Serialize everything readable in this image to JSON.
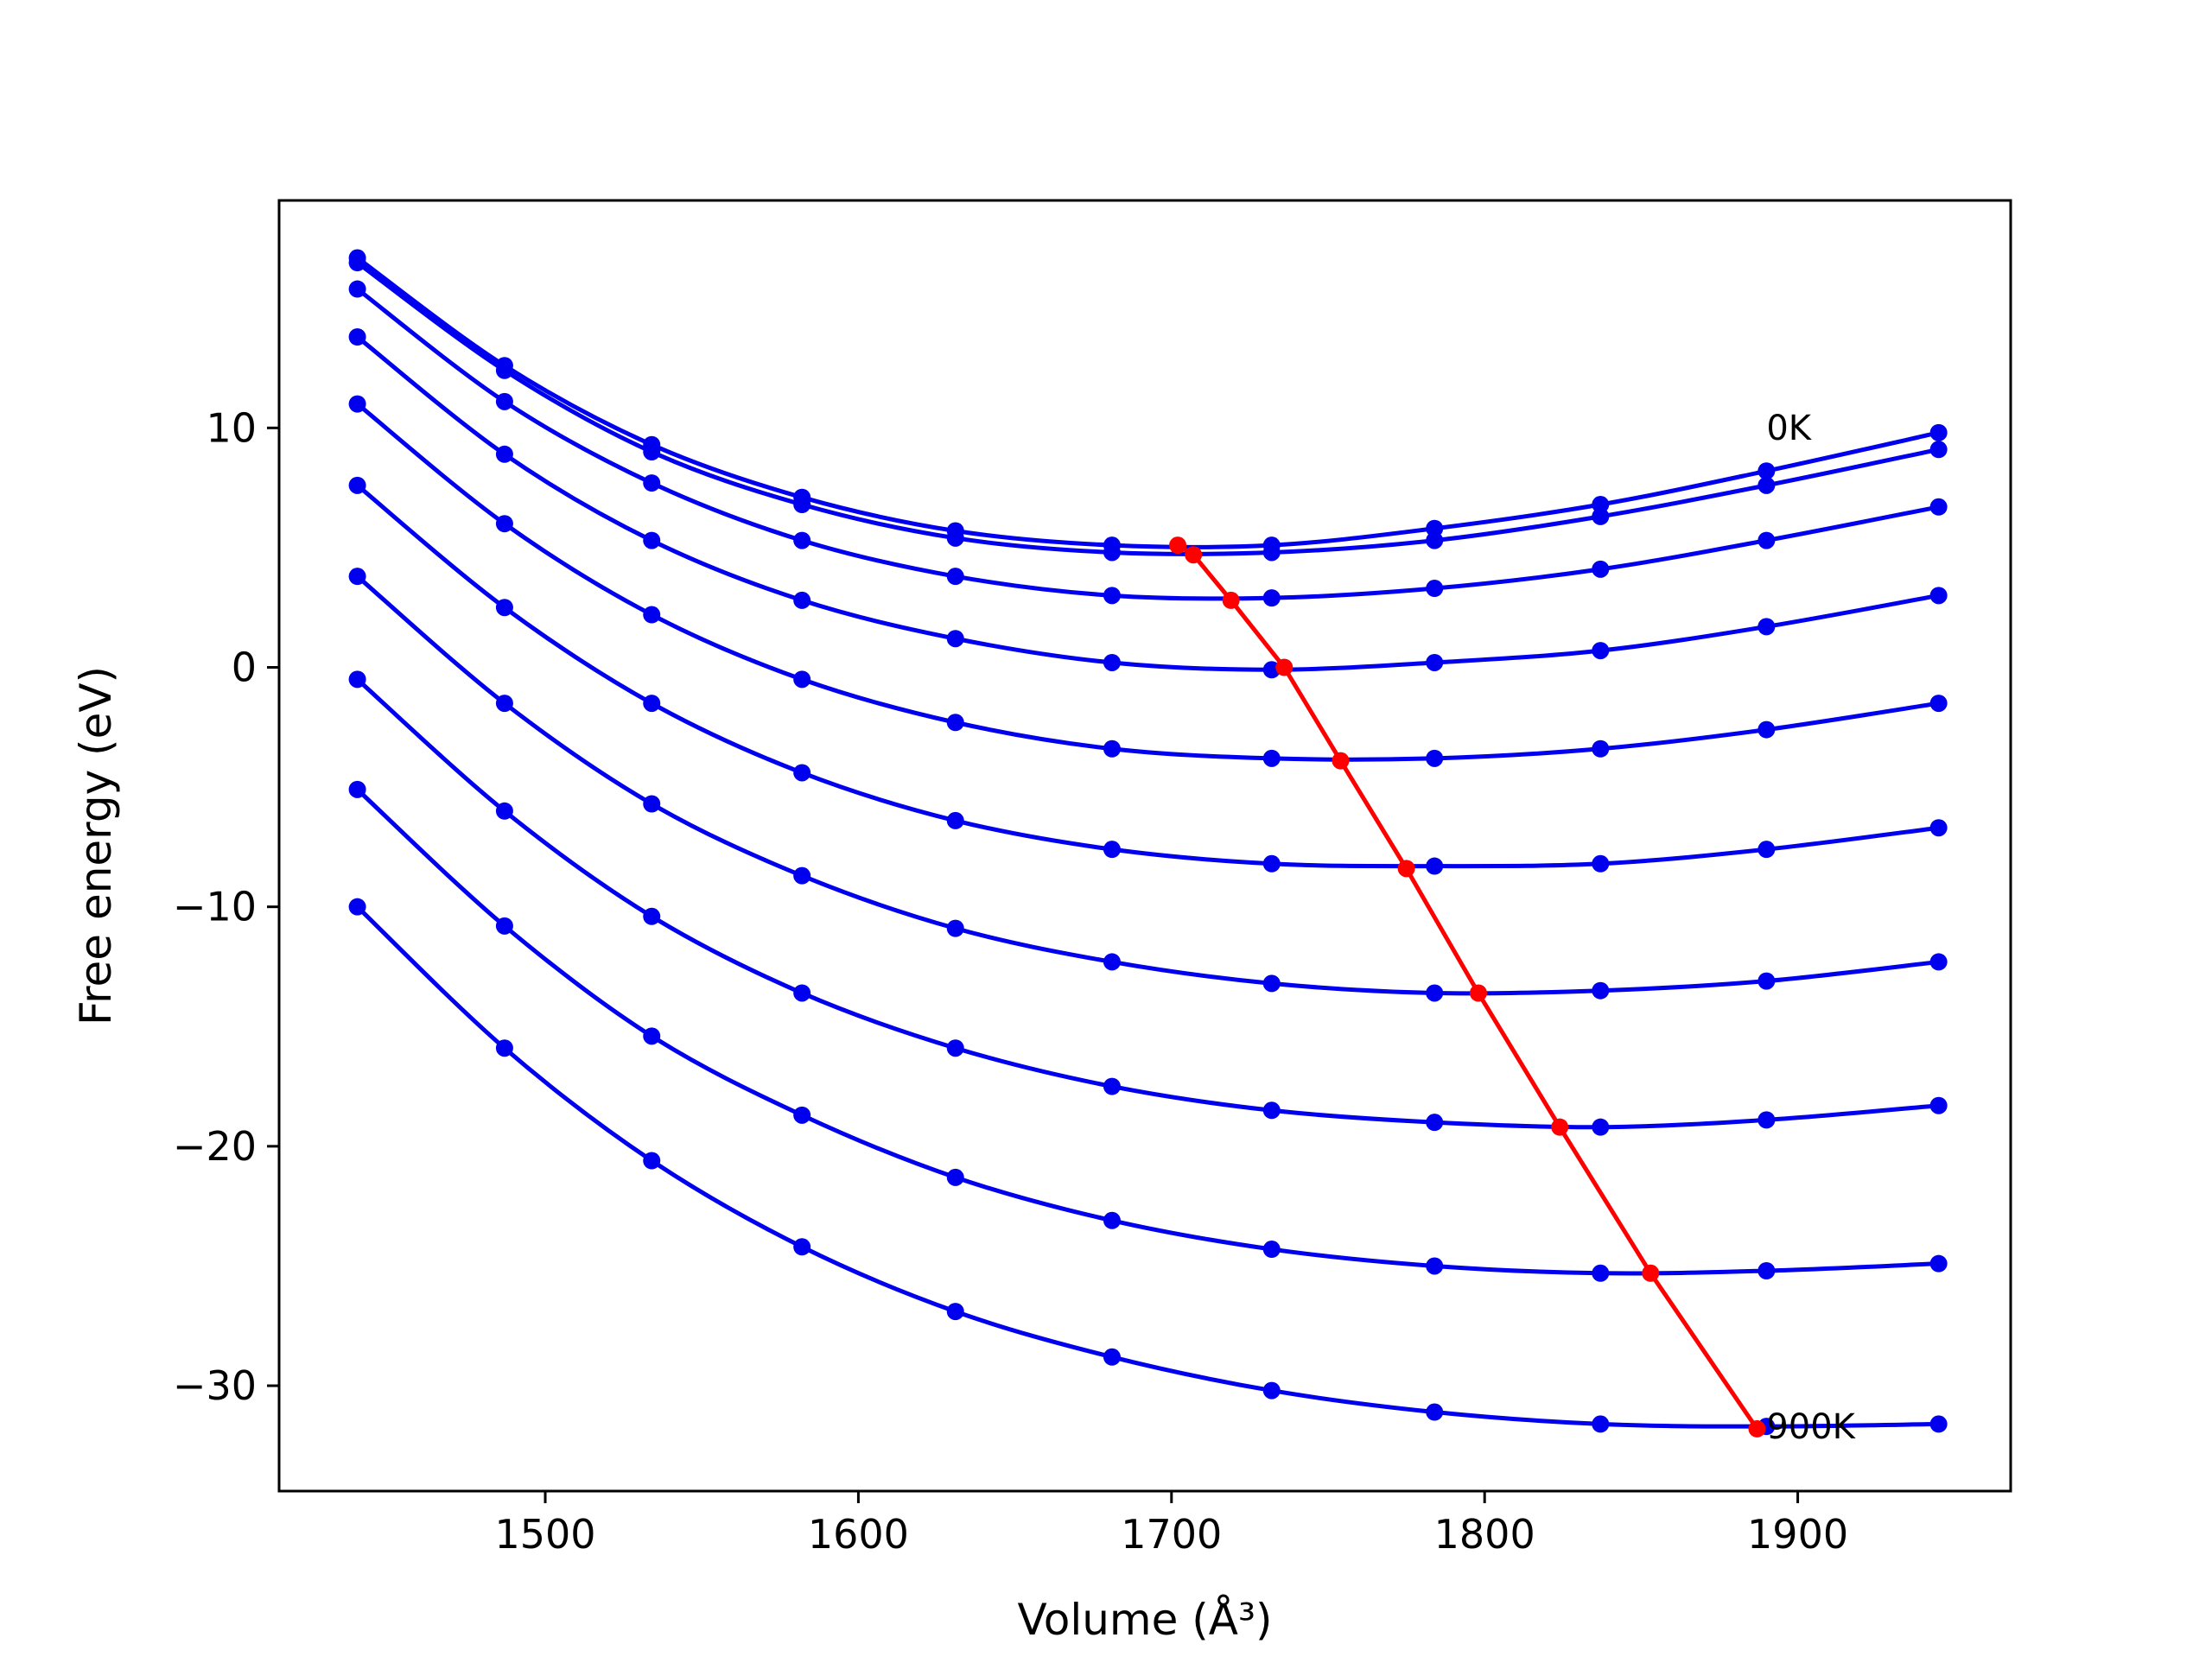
{
  "chart_data": {
    "type": "line",
    "xlabel": "Volume (Å³)",
    "ylabel": "Free energy (eV)",
    "xlim": [
      1415,
      1968
    ],
    "ylim": [
      -34.4,
      19.5
    ],
    "x_ticks": [
      1500,
      1600,
      1700,
      1800,
      1900
    ],
    "x_tick_labels": [
      "1500",
      "1600",
      "1700",
      "1800",
      "1900"
    ],
    "y_ticks": [
      10,
      0,
      -10,
      -20,
      -30
    ],
    "y_tick_labels": [
      "10",
      "0",
      "−10",
      "−20",
      "−30"
    ],
    "grid": false,
    "x": [
      1440,
      1487,
      1534,
      1582,
      1631,
      1681,
      1732,
      1784,
      1837,
      1890,
      1945
    ],
    "series": [
      {
        "color": "#0000ee",
        "values": [
          17.1,
          12.6,
          9.3,
          7.1,
          5.7,
          5.1,
          5.1,
          5.8,
          6.8,
          8.2,
          9.8
        ]
      },
      {
        "color": "#0000ee",
        "values": [
          16.9,
          12.4,
          9.0,
          6.8,
          5.4,
          4.8,
          4.8,
          5.3,
          6.3,
          7.6,
          9.1
        ]
      },
      {
        "color": "#0000ee",
        "values": [
          15.8,
          11.1,
          7.7,
          5.3,
          3.8,
          3.0,
          2.9,
          3.3,
          4.1,
          5.3,
          6.7
        ]
      },
      {
        "color": "#0000ee",
        "values": [
          13.8,
          8.9,
          5.3,
          2.8,
          1.2,
          0.2,
          -0.1,
          0.2,
          0.7,
          1.7,
          3.0
        ]
      },
      {
        "color": "#0000ee",
        "values": [
          11.0,
          6.0,
          2.2,
          -0.5,
          -2.3,
          -3.4,
          -3.8,
          -3.8,
          -3.4,
          -2.6,
          -1.5
        ]
      },
      {
        "color": "#0000ee",
        "values": [
          7.6,
          2.5,
          -1.5,
          -4.4,
          -6.4,
          -7.6,
          -8.2,
          -8.3,
          -8.2,
          -7.6,
          -6.7
        ]
      },
      {
        "color": "#0000ee",
        "values": [
          3.8,
          -1.5,
          -5.7,
          -8.7,
          -10.9,
          -12.3,
          -13.2,
          -13.6,
          -13.5,
          -13.1,
          -12.3
        ]
      },
      {
        "color": "#0000ee",
        "values": [
          -0.5,
          -6.0,
          -10.4,
          -13.6,
          -15.9,
          -17.5,
          -18.5,
          -19.0,
          -19.2,
          -18.9,
          -18.3
        ]
      },
      {
        "color": "#0000ee",
        "values": [
          -5.1,
          -10.8,
          -15.4,
          -18.7,
          -21.3,
          -23.1,
          -24.3,
          -25.0,
          -25.3,
          -25.2,
          -24.9
        ]
      },
      {
        "color": "#0000ee",
        "values": [
          -10.0,
          -15.9,
          -20.6,
          -24.2,
          -26.9,
          -28.8,
          -30.2,
          -31.1,
          -31.6,
          -31.7,
          -31.6
        ]
      }
    ],
    "minimum_line": {
      "color": "#ff0000",
      "x": [
        1702,
        1707,
        1719,
        1736,
        1754,
        1775,
        1798,
        1824,
        1853,
        1887
      ],
      "y": [
        5.1,
        4.7,
        2.8,
        0.0,
        -3.9,
        -8.4,
        -13.6,
        -19.2,
        -25.3,
        -31.8
      ]
    },
    "annotations": [
      {
        "text": "0K",
        "x": 1890,
        "y": 9.5
      },
      {
        "text": "900K",
        "x": 1890,
        "y": -32.2
      }
    ]
  }
}
